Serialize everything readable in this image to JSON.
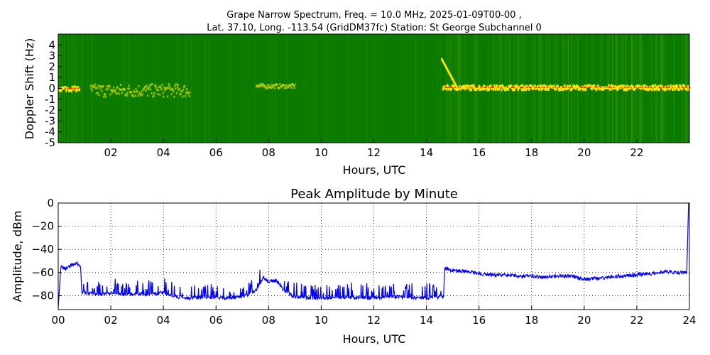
{
  "chart_data": [
    {
      "type": "heatmap",
      "title_line1": "Grape Narrow Spectrum, Freq. = 10.0 MHz, 2025-01-09T00-00 ,",
      "title_line2": "Lat.  37.10, Long. -113.54 (GridDM37fc) Station: St George Subchannel 0",
      "xlabel": "Hours, UTC",
      "ylabel": "Doppler Shift (Hz)",
      "xlim": [
        0,
        24
      ],
      "ylim": [
        -5,
        5
      ],
      "xticks": [
        "02",
        "04",
        "06",
        "08",
        "10",
        "12",
        "14",
        "16",
        "18",
        "20",
        "22"
      ],
      "xtick_values": [
        2,
        4,
        6,
        8,
        10,
        12,
        14,
        16,
        18,
        20,
        22
      ],
      "yticks": [
        "4",
        "3",
        "2",
        "1",
        "0",
        "-1",
        "-2",
        "-3",
        "-4",
        "-5"
      ],
      "ytick_values": [
        4,
        3,
        2,
        1,
        0,
        -1,
        -2,
        -3,
        -4,
        -5
      ],
      "colors": {
        "background": "#0b7a00",
        "signal_weak": "#c8d400",
        "signal_strong": "#ffe600",
        "peak": "#ff2a00"
      },
      "features": [
        {
          "name": "early carrier",
          "x_start": 0,
          "x_end": 0.8,
          "doppler": 0
        },
        {
          "name": "morning trace",
          "x_start": 1.2,
          "x_end": 5.0,
          "doppler": -0.2
        },
        {
          "name": "0800 trace",
          "x_start": 7.5,
          "x_end": 9.0,
          "doppler": 0.2
        },
        {
          "name": "afternoon carrier",
          "x_start": 14.6,
          "x_end": 24,
          "doppler": 0.1
        }
      ]
    },
    {
      "type": "line",
      "title": "Peak Amplitude by Minute",
      "xlabel": "Hours, UTC",
      "ylabel": "Amplitude, dBm",
      "xlim": [
        0,
        24
      ],
      "ylim": [
        -92,
        0
      ],
      "grid": true,
      "color": "#0000ff",
      "xticks": [
        "00",
        "02",
        "04",
        "06",
        "08",
        "10",
        "12",
        "14",
        "16",
        "18",
        "20",
        "22",
        "24"
      ],
      "xtick_values": [
        0,
        2,
        4,
        6,
        8,
        10,
        12,
        14,
        16,
        18,
        20,
        22,
        24
      ],
      "yticks": [
        "0",
        "−20",
        "−40",
        "−60",
        "−80"
      ],
      "ytick_values": [
        0,
        -20,
        -40,
        -60,
        -80
      ],
      "series": [
        {
          "x": [
            0.0,
            0.1,
            0.3,
            0.5,
            0.7,
            0.85,
            0.9,
            1.2,
            1.5,
            2.0,
            2.5,
            3.0,
            3.5,
            4.0,
            4.5,
            5.0,
            5.5,
            6.0,
            6.5,
            7.0,
            7.5,
            7.8,
            8.0,
            8.3,
            8.6,
            9.0,
            9.5,
            10.0,
            10.5,
            11.0,
            11.5,
            12.0,
            12.5,
            13.0,
            13.5,
            14.0,
            14.5,
            14.65,
            14.7,
            15.0,
            15.5,
            16.0,
            16.5,
            17.0,
            17.5,
            18.0,
            18.5,
            19.0,
            19.5,
            20.0,
            20.5,
            21.0,
            21.5,
            22.0,
            22.5,
            23.0,
            23.5,
            23.9,
            23.97
          ],
          "y": [
            -90,
            -55,
            -57,
            -54,
            -52,
            -55,
            -77,
            -78,
            -79,
            -78,
            -79,
            -78,
            -79,
            -77,
            -81,
            -82,
            -81,
            -82,
            -82,
            -81,
            -76,
            -64,
            -68,
            -67,
            -76,
            -81,
            -82,
            -82,
            -82,
            -81,
            -82,
            -82,
            -81,
            -81,
            -82,
            -82,
            -81,
            -81,
            -56,
            -58,
            -59,
            -61,
            -62,
            -62,
            -63,
            -63,
            -64,
            -63,
            -63,
            -66,
            -65,
            -64,
            -63,
            -62,
            -61,
            -59,
            -60,
            -60,
            0
          ]
        }
      ]
    }
  ]
}
